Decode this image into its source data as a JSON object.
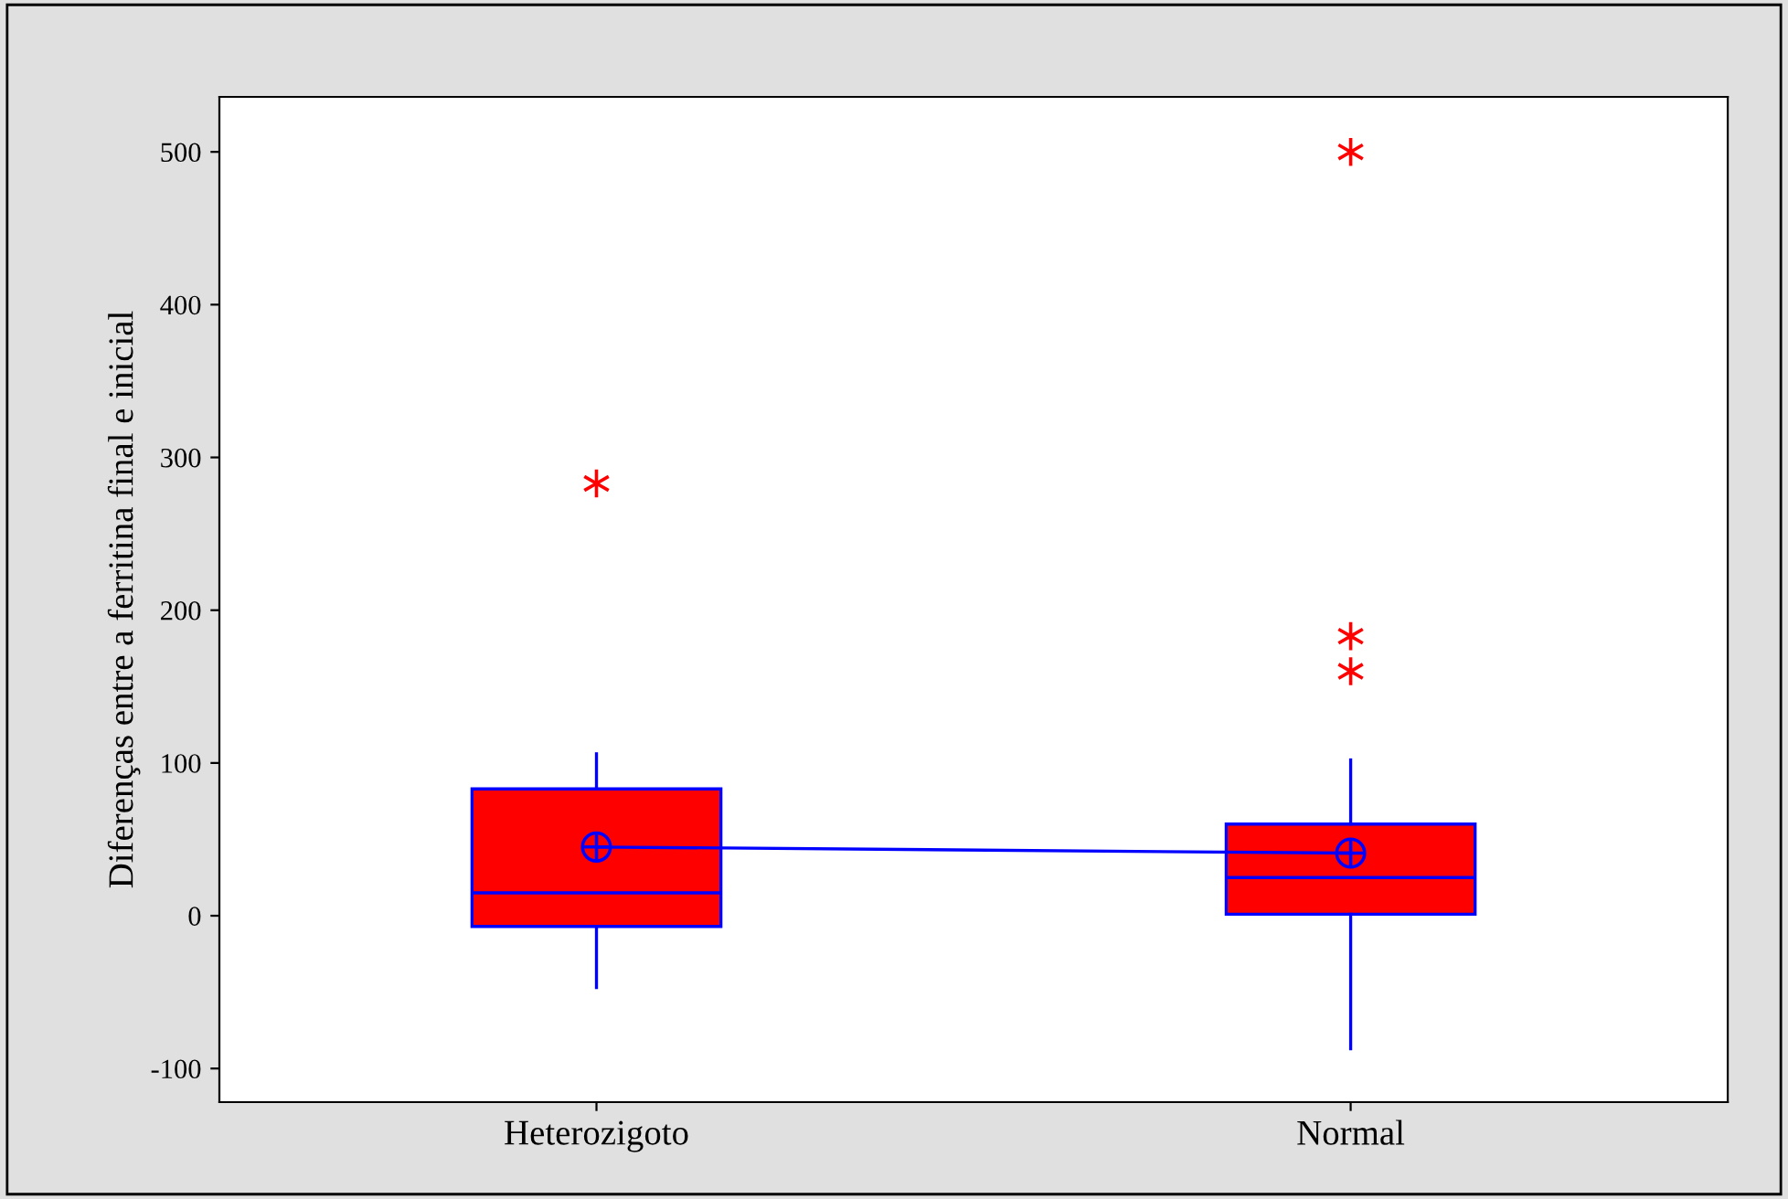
{
  "chart_data": {
    "type": "box",
    "ylabel": "Diferenças entre a ferritina final e inicial",
    "categories": [
      "Heterozigoto",
      "Normal"
    ],
    "ylim": [
      -122,
      536
    ],
    "yticks": [
      -100,
      0,
      100,
      200,
      300,
      400,
      500
    ],
    "grid": false,
    "legend": false,
    "series": [
      {
        "color": "#ff0000",
        "boxes": [
          {
            "low": -47,
            "q1": -7,
            "median": 15,
            "q3": 83,
            "high": 106,
            "mean": 45,
            "outliers": [
              283
            ]
          },
          {
            "low": -87,
            "q1": 1,
            "median": 25,
            "q3": 60,
            "high": 102,
            "mean": 41,
            "outliers": [
              500,
              183,
              160
            ]
          }
        ]
      },
      {
        "type": "line",
        "color": "#0000ff",
        "values": [
          45,
          41
        ],
        "marker": "none"
      }
    ]
  }
}
